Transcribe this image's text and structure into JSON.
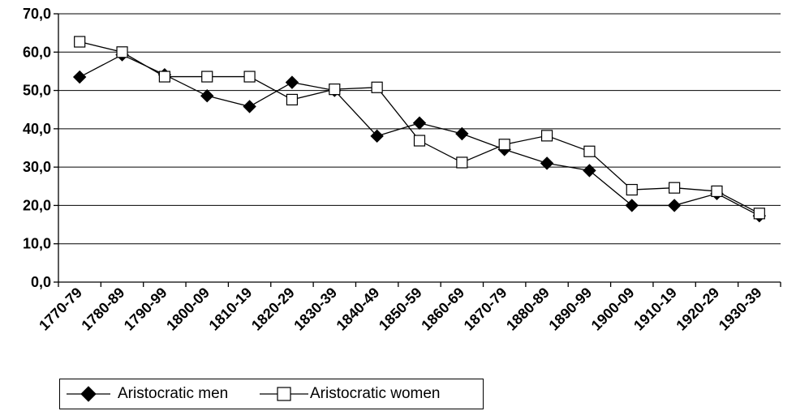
{
  "chart_data": {
    "type": "line",
    "categories": [
      "1770-79",
      "1780-89",
      "1790-99",
      "1800-09",
      "1810-19",
      "1820-29",
      "1830-39",
      "1840-49",
      "1850-59",
      "1860-69",
      "1870-79",
      "1880-89",
      "1890-99",
      "1900-09",
      "1910-19",
      "1920-29",
      "1930-39"
    ],
    "y_ticks": [
      "0,0",
      "10,0",
      "20,0",
      "30,0",
      "40,0",
      "50,0",
      "60,0",
      "70,0"
    ],
    "ylim": [
      0,
      70
    ],
    "grid": true,
    "legend_position": "bottom-left",
    "series": [
      {
        "name": "Aristocratic men",
        "marker": "filled-diamond",
        "color": "#000000",
        "values": [
          53.5,
          59.3,
          54.1,
          48.6,
          45.8,
          52.1,
          50.0,
          38.1,
          41.5,
          38.7,
          34.6,
          31.0,
          29.1,
          20.0,
          20.0,
          23.1,
          17.3
        ]
      },
      {
        "name": "Aristocratic women",
        "marker": "open-square",
        "color": "#000000",
        "values": [
          62.7,
          60.0,
          53.6,
          53.6,
          53.6,
          47.6,
          50.3,
          50.8,
          36.9,
          31.2,
          35.9,
          38.2,
          34.1,
          24.1,
          24.6,
          23.7,
          17.9
        ]
      }
    ]
  }
}
